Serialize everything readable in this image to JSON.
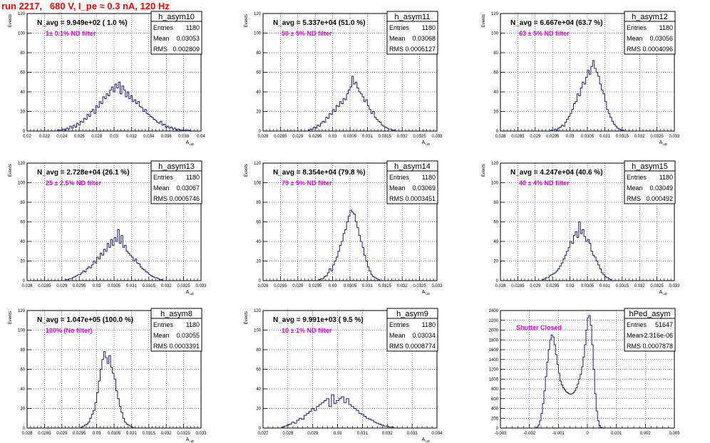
{
  "header": {
    "title": "run 2217,   680 V, I_pe ≈ 0.3 nA, 120 Hz"
  },
  "chart_data": [
    {
      "type": "histogram",
      "name": "h_asym10",
      "navg": "N_avg = 9.949e+02 ( 1.0 %)",
      "filter": "1± 0.1% ND filter",
      "stats": {
        "entries": "1180",
        "mean": "0.03053",
        "rms": "0.002809"
      },
      "xlabel": "A uD",
      "ylabel": "Events",
      "xlim": [
        0.02,
        0.04
      ],
      "ylim": [
        0,
        120
      ],
      "xticks": [
        "0.02",
        "0.022",
        "0.024",
        "0.026",
        "0.028",
        "0.03",
        "0.032",
        "0.034",
        "0.036",
        "0.038",
        "0.04"
      ],
      "yticks": [
        "0",
        "20",
        "40",
        "60",
        "80",
        "100",
        "120"
      ],
      "bin_start": 0.0235,
      "bin_width": 0.0002,
      "values": [
        1,
        1,
        0,
        2,
        1,
        3,
        2,
        5,
        3,
        6,
        4,
        8,
        6,
        10,
        9,
        13,
        12,
        17,
        15,
        20,
        22,
        18,
        26,
        24,
        30,
        28,
        35,
        33,
        38,
        36,
        42,
        45,
        40,
        48,
        44,
        50,
        38,
        46,
        42,
        35,
        40,
        33,
        36,
        30,
        32,
        28,
        30,
        25,
        24,
        20,
        22,
        18,
        17,
        15,
        14,
        12,
        11,
        9,
        8,
        10,
        6,
        7,
        4,
        5,
        3,
        4,
        2,
        3,
        1,
        2,
        1,
        1,
        0,
        1,
        0,
        1
      ]
    },
    {
      "type": "histogram",
      "name": "h_asym11",
      "navg": "N_avg = 5.337e+04 (51.0 %)",
      "filter": "50 ± 5% ND filter",
      "stats": {
        "entries": "1180",
        "mean": "0.03068",
        "rms": "0.0005127"
      },
      "xlabel": "A uD",
      "ylabel": "Events",
      "xlim": [
        0.028,
        0.033
      ],
      "ylim": [
        0,
        120
      ],
      "xticks": [
        "0.028",
        "0.0285",
        "0.029",
        "0.0295",
        "0.03",
        "0.0305",
        "0.031",
        "0.0315",
        "0.032",
        "0.0325",
        "0.033"
      ],
      "yticks": [
        "0",
        "20",
        "40",
        "60",
        "80",
        "100",
        "120"
      ],
      "bin_start": 0.0293,
      "bin_width": 5e-05,
      "values": [
        1,
        2,
        2,
        4,
        3,
        6,
        5,
        8,
        10,
        9,
        14,
        13,
        18,
        17,
        22,
        20,
        26,
        25,
        30,
        28,
        33,
        32,
        38,
        42,
        45,
        56,
        48,
        50,
        44,
        40,
        38,
        35,
        30,
        32,
        26,
        22,
        18,
        20,
        14,
        12,
        10,
        9,
        6,
        5,
        4,
        3,
        2,
        2,
        1,
        1
      ]
    },
    {
      "type": "histogram",
      "name": "h_asym12",
      "navg": "N_avg = 6.667e+04 (63.7 %)",
      "filter": "63 ± 5% ND filter",
      "stats": {
        "entries": "1180",
        "mean": "0.03056",
        "rms": "0.0004096"
      },
      "xlabel": "A uD",
      "ylabel": "Events",
      "xlim": [
        0.028,
        0.033
      ],
      "ylim": [
        0,
        120
      ],
      "xticks": [
        "0.028",
        "0.0285",
        "0.029",
        "0.0295",
        "0.03",
        "0.0305",
        "0.031",
        "0.0315",
        "0.032",
        "0.0325",
        "0.033"
      ],
      "yticks": [
        "0",
        "20",
        "40",
        "60",
        "80",
        "100",
        "120"
      ],
      "bin_start": 0.02945,
      "bin_width": 5e-05,
      "values": [
        1,
        0,
        2,
        1,
        3,
        4,
        6,
        5,
        9,
        12,
        15,
        18,
        22,
        28,
        30,
        38,
        36,
        44,
        50,
        48,
        55,
        62,
        58,
        66,
        72,
        64,
        60,
        56,
        48,
        42,
        38,
        30,
        22,
        18,
        14,
        10,
        7,
        5,
        3,
        2,
        1,
        1
      ]
    },
    {
      "type": "histogram",
      "name": "h_asym13",
      "navg": "N_avg = 2.728e+04 (26.1 %)",
      "filter": "25 ± 2.5% ND filter",
      "stats": {
        "entries": "1180",
        "mean": "0.03067",
        "rms": "0.0005746"
      },
      "xlabel": "A uD",
      "ylabel": "Events",
      "xlim": [
        0.028,
        0.033
      ],
      "ylim": [
        0,
        120
      ],
      "xticks": [
        "0.028",
        "0.0285",
        "0.029",
        "0.0295",
        "0.03",
        "0.0305",
        "0.031",
        "0.0315",
        "0.032",
        "0.0325",
        "0.033"
      ],
      "yticks": [
        "0",
        "20",
        "40",
        "60",
        "80",
        "100",
        "120"
      ],
      "bin_start": 0.0291,
      "bin_width": 5e-05,
      "values": [
        1,
        1,
        2,
        2,
        3,
        4,
        5,
        6,
        6,
        8,
        10,
        9,
        12,
        14,
        13,
        16,
        20,
        18,
        24,
        22,
        28,
        26,
        32,
        30,
        38,
        34,
        42,
        36,
        44,
        40,
        52,
        38,
        46,
        34,
        36,
        30,
        28,
        26,
        24,
        20,
        22,
        18,
        17,
        14,
        12,
        11,
        9,
        8,
        6,
        5,
        4,
        3,
        3,
        2,
        1,
        1
      ]
    },
    {
      "type": "histogram",
      "name": "h_asym14",
      "navg": "N_avg = 8.354e+04 (79.8 %)",
      "filter": "79 ± 5% ND filter",
      "stats": {
        "entries": "1180",
        "mean": "0.03069",
        "rms": "0.0003451"
      },
      "xlabel": "A uD",
      "ylabel": "Events",
      "xlim": [
        0.028,
        0.033
      ],
      "ylim": [
        0,
        120
      ],
      "xticks": [
        "0.028",
        "0.0285",
        "0.029",
        "0.0295",
        "0.03",
        "0.0305",
        "0.031",
        "0.0315",
        "0.032",
        "0.0325",
        "0.033"
      ],
      "yticks": [
        "0",
        "20",
        "40",
        "60",
        "80",
        "100",
        "120"
      ],
      "bin_start": 0.0296,
      "bin_width": 5e-05,
      "values": [
        1,
        2,
        2,
        4,
        5,
        8,
        12,
        10,
        16,
        20,
        24,
        30,
        36,
        40,
        48,
        52,
        60,
        66,
        72,
        70,
        68,
        60,
        54,
        46,
        40,
        34,
        26,
        20,
        14,
        10,
        6,
        4,
        3,
        2,
        1
      ]
    },
    {
      "type": "histogram",
      "name": "h_asym15",
      "navg": "N_avg = 4.247e+04 (40.6 %)",
      "filter": "40 ± 4% ND filter",
      "stats": {
        "entries": "1180",
        "mean": "0.03049",
        "rms": "0.000492"
      },
      "xlabel": "A uD",
      "ylabel": "Events",
      "xlim": [
        0.028,
        0.033
      ],
      "ylim": [
        0,
        120
      ],
      "xticks": [
        "0.028",
        "0.0285",
        "0.029",
        "0.0295",
        "0.03",
        "0.0305",
        "0.031",
        "0.0315",
        "0.032",
        "0.0325",
        "0.033"
      ],
      "yticks": [
        "0",
        "20",
        "40",
        "60",
        "80",
        "100",
        "120"
      ],
      "bin_start": 0.0292,
      "bin_width": 5e-05,
      "values": [
        1,
        2,
        3,
        3,
        5,
        6,
        7,
        8,
        10,
        12,
        15,
        18,
        22,
        26,
        30,
        34,
        40,
        38,
        46,
        50,
        44,
        60,
        48,
        52,
        45,
        40,
        42,
        38,
        30,
        26,
        24,
        20,
        16,
        12,
        8,
        6,
        4,
        3,
        2,
        1
      ]
    },
    {
      "type": "histogram",
      "name": "h_asym8",
      "navg": "N_avg = 1.047e+05 (100.0 %)",
      "filter": "100% (No filter)",
      "stats": {
        "entries": "1180",
        "mean": "0.03055",
        "rms": "0.0003391"
      },
      "xlabel": "A uD",
      "ylabel": "Events",
      "xlim": [
        0.028,
        0.033
      ],
      "ylim": [
        0,
        120
      ],
      "xticks": [
        "0.028",
        "0.0285",
        "0.029",
        "0.0295",
        "0.03",
        "0.0305",
        "0.031",
        "0.0315",
        "0.032",
        "0.0325",
        "0.033"
      ],
      "yticks": [
        "0",
        "20",
        "40",
        "60",
        "80",
        "100",
        "120"
      ],
      "bin_start": 0.02955,
      "bin_width": 5e-05,
      "values": [
        1,
        2,
        3,
        4,
        6,
        10,
        14,
        18,
        26,
        36,
        48,
        60,
        70,
        78,
        72,
        66,
        74,
        62,
        56,
        50,
        38,
        30,
        22,
        16,
        10,
        6,
        4,
        3,
        2,
        1
      ]
    },
    {
      "type": "histogram",
      "name": "h_asym9",
      "navg": "N_avg = 9.991e+03 ( 9.5 %)",
      "filter": "10 ± 1% ND filter",
      "stats": {
        "entries": "1180",
        "mean": "0.03034",
        "rms": "0.0008774"
      },
      "xlabel": "A uD",
      "ylabel": "Events",
      "xlim": [
        0.027,
        0.034
      ],
      "ylim": [
        0,
        120
      ],
      "xticks": [
        "0.027",
        "0.028",
        "0.029",
        "0.03",
        "0.031",
        "0.032",
        "0.033",
        "0.034"
      ],
      "yticks": [
        "0",
        "20",
        "40",
        "60",
        "80",
        "100",
        "120"
      ],
      "bin_start": 0.02775,
      "bin_width": 0.0001,
      "values": [
        1,
        2,
        3,
        4,
        6,
        5,
        8,
        10,
        9,
        13,
        15,
        17,
        20,
        18,
        22,
        24,
        26,
        28,
        30,
        22,
        34,
        25,
        28,
        30,
        32,
        26,
        30,
        24,
        22,
        20,
        18,
        15,
        14,
        12,
        10,
        9,
        8,
        6,
        5,
        4,
        3,
        2,
        2,
        1,
        1
      ]
    },
    {
      "type": "histogram",
      "name": "hPed_asym",
      "navg": "",
      "filter": "Shutter Closed",
      "stats": {
        "entries": "51647",
        "mean": "-2.316e-06",
        "rms": "0.0007878"
      },
      "xlabel": "",
      "ylabel": "",
      "xlim": [
        -0.003,
        0.003
      ],
      "ylim": [
        0,
        2400
      ],
      "xticks": [
        "-0.003",
        "-0.002",
        "-0.001",
        "0",
        "0.001",
        "0.002",
        "0.003"
      ],
      "yticks": [
        "0",
        "200",
        "400",
        "600",
        "800",
        "1000",
        "1200",
        "1400",
        "1600",
        "1800",
        "2000",
        "2200",
        "2400"
      ],
      "bin_start": -0.0018,
      "bin_width": 5e-05,
      "values": [
        5,
        20,
        60,
        150,
        300,
        500,
        760,
        1050,
        1350,
        1600,
        1800,
        1900,
        1860,
        1700,
        1500,
        1300,
        1120,
        960,
        880,
        820,
        780,
        740,
        720,
        700,
        690,
        700,
        720,
        760,
        820,
        900,
        1000,
        1100,
        1250,
        1450,
        1700,
        2000,
        2250,
        2300,
        2100,
        1700,
        1200,
        700,
        350,
        150,
        50,
        15,
        5
      ]
    }
  ]
}
